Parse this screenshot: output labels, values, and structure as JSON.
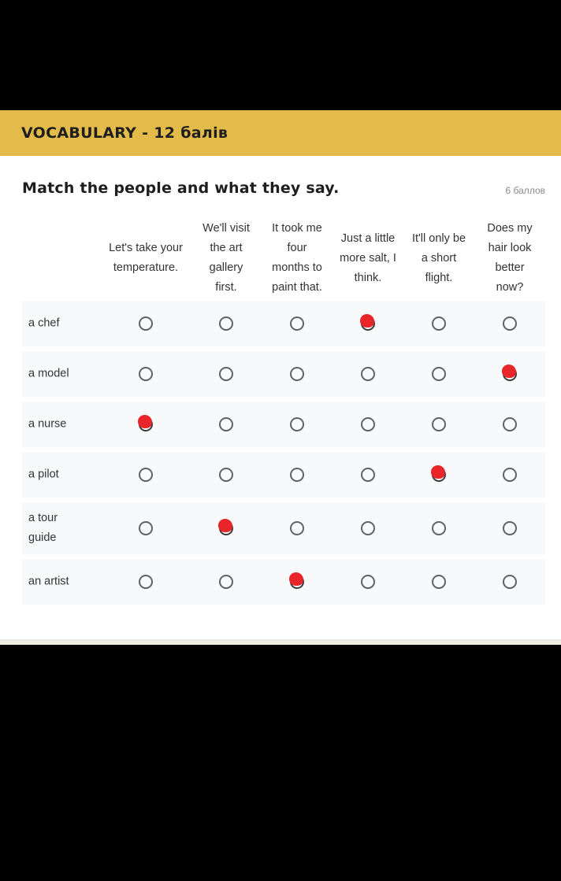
{
  "section": {
    "title": "VOCABULARY - 12 балів",
    "header_color": "#e3bb4a"
  },
  "question": {
    "title": "Match the people and what they say.",
    "points": "6 баллов"
  },
  "columns": [
    {
      "lines": [
        "Let's take your",
        "temperature."
      ]
    },
    {
      "lines": [
        "We'll visit",
        "the art",
        "gallery",
        "first."
      ]
    },
    {
      "lines": [
        "It took me",
        "four",
        "months to",
        "paint that."
      ]
    },
    {
      "lines": [
        "Just a little",
        "more salt, I",
        "think."
      ]
    },
    {
      "lines": [
        "It'll only be",
        "a short",
        "flight."
      ]
    },
    {
      "lines": [
        "Does my",
        "hair look",
        "better",
        "now?"
      ]
    }
  ],
  "rows": [
    {
      "lines": [
        "a chef"
      ],
      "selected": 3
    },
    {
      "lines": [
        "a model"
      ],
      "selected": 5
    },
    {
      "lines": [
        "a nurse"
      ],
      "selected": 0
    },
    {
      "lines": [
        "a pilot"
      ],
      "selected": 4
    },
    {
      "lines": [
        "a tour",
        "guide"
      ],
      "selected": 1
    },
    {
      "lines": [
        "an artist"
      ],
      "selected": 2
    }
  ],
  "colors": {
    "mark": "#e8262a",
    "radio_border": "#5f6368",
    "row_background": "#f8f9fa"
  }
}
